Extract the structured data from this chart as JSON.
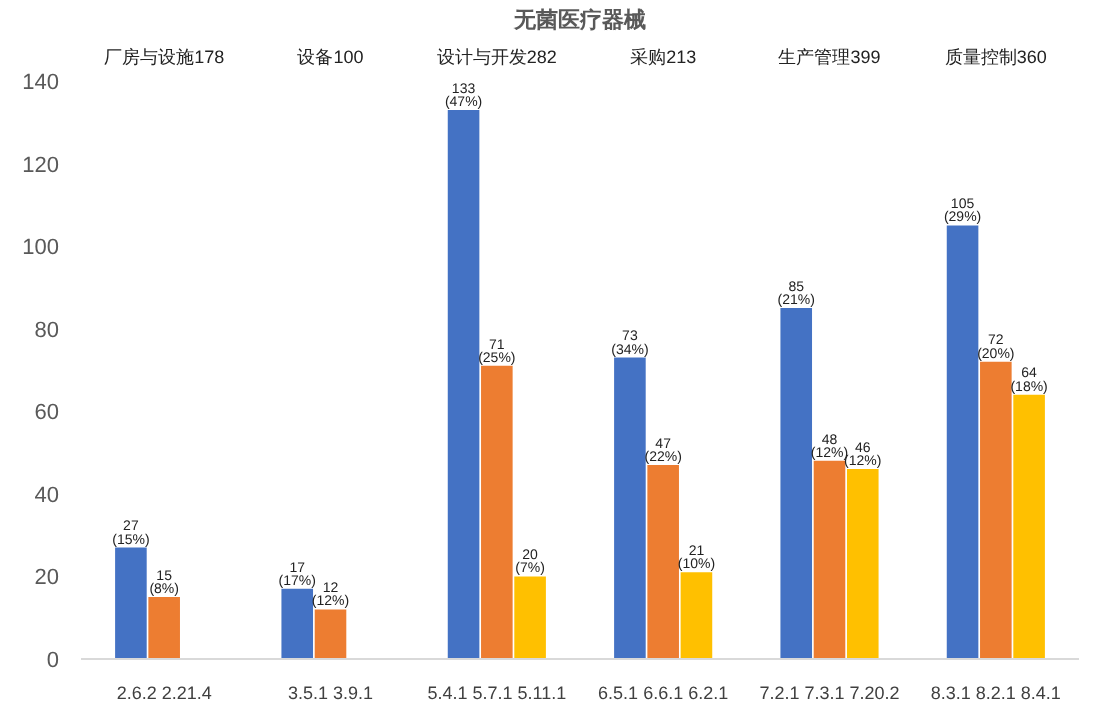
{
  "chart_data": {
    "type": "bar",
    "title": "无菌医疗器械",
    "categories": [
      "2.6.2 2.21.4",
      "3.5.1 3.9.1",
      "5.4.1 5.7.1 5.11.1",
      "6.5.1 6.6.1 6.2.1",
      "7.2.1 7.3.1 7.20.2",
      "8.3.1 8.2.1 8.4.1"
    ],
    "series": [
      {
        "color": "#4472c4",
        "values": [
          27,
          17,
          133,
          73,
          85,
          105
        ],
        "value_labels": [
          "27\n(15%)",
          "17\n(17%)",
          "133\n(47%)",
          "73\n(34%)",
          "85\n(21%)",
          "105\n(29%)"
        ]
      },
      {
        "color": "#ed7d31",
        "values": [
          15,
          12,
          71,
          47,
          48,
          72
        ],
        "value_labels": [
          "15\n(8%)",
          "12\n(12%)",
          "71\n(25%)",
          "47\n(22%)",
          "48\n(12%)",
          "72\n(20%)"
        ]
      },
      {
        "color": "#ffc000",
        "values": [
          null,
          null,
          20,
          21,
          46,
          64
        ],
        "value_labels": [
          null,
          null,
          "20\n(7%)",
          "21\n(10%)",
          "46\n(12%)",
          "64\n(18%)"
        ]
      }
    ],
    "ylim": [
      0,
      140
    ],
    "yticks": [
      0,
      20,
      40,
      60,
      80,
      100,
      120,
      140
    ],
    "grid": false,
    "annotations": [
      "厂房与设施178",
      "设备100",
      "设计与开发282",
      "采购213",
      "生产管理399",
      "质量控制360"
    ]
  }
}
